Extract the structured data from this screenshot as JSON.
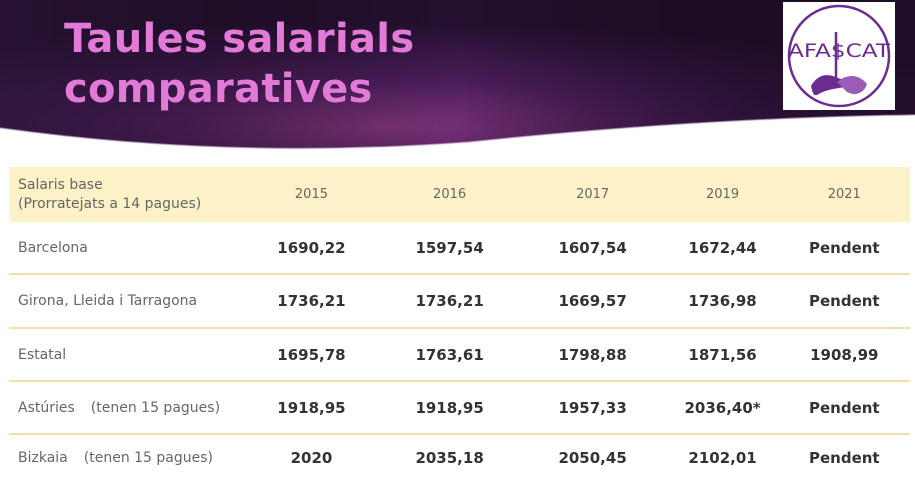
{
  "title": {
    "line1": "Taules salarials",
    "line2": "comparatives"
  },
  "logo": {
    "text": "AFA$CAT",
    "left": "AFA",
    "mid": "$",
    "right": "CAT"
  },
  "colors": {
    "title": "#e27ad8",
    "header_dark": "#2a0f3c",
    "header_purple": "#6a2a73",
    "table_header_bg": "#fdf1c7",
    "row_divider": "#efe1ad",
    "logo_purple": "#6b2c8f"
  },
  "table": {
    "row_header_line1": "Salaris base",
    "row_header_line2": "(Prorratejats a 14 pagues)",
    "years": [
      "2015",
      "2016",
      "2017",
      "2019",
      "2021"
    ],
    "rows": [
      {
        "label": "Barcelona",
        "note": "",
        "values": [
          "1690,22",
          "1597,54",
          "1607,54",
          "1672,44",
          "Pendent"
        ]
      },
      {
        "label": "Girona, Lleida i Tarragona",
        "note": "",
        "values": [
          "1736,21",
          "1736,21",
          "1669,57",
          "1736,98",
          "Pendent"
        ]
      },
      {
        "label": "Estatal",
        "note": "",
        "values": [
          "1695,78",
          "1763,61",
          "1798,88",
          "1871,56",
          "1908,99"
        ]
      },
      {
        "label": "Astúries",
        "note": "(tenen 15 pagues)",
        "values": [
          "1918,95",
          "1918,95",
          "1957,33",
          "2036,40*",
          "Pendent"
        ]
      },
      {
        "label": "Bizkaia",
        "note": "(tenen 15 pagues)",
        "values": [
          "2020",
          "2035,18",
          "2050,45",
          "2102,01",
          "Pendent"
        ]
      }
    ]
  }
}
